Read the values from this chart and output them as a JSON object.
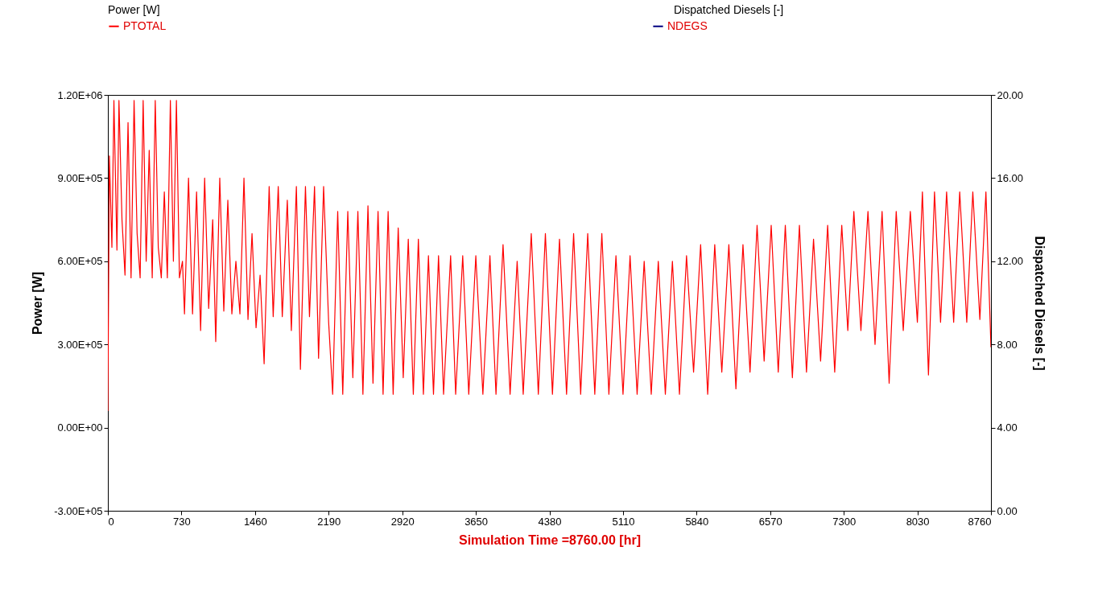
{
  "chart_data": {
    "type": "line",
    "xlabel": "Simulation Time =8760.00 [hr]",
    "ylabel": "Power  [W]",
    "y2label": "Dispatched  Diesels [-]",
    "annotations": [
      "Power [W]",
      "Dispatched Diesels [-]"
    ],
    "legend": "top",
    "xlim": [
      0,
      8760
    ],
    "xticks": [
      0,
      730,
      1460,
      2190,
      2920,
      3650,
      4380,
      5110,
      5840,
      6570,
      7300,
      8030,
      8760
    ],
    "ylim": [
      -300000,
      1200000
    ],
    "yticks": [
      {
        "value": -300000,
        "label": "-3.00E+05"
      },
      {
        "value": 0,
        "label": "0.00E+00"
      },
      {
        "value": 300000,
        "label": "3.00E+05"
      },
      {
        "value": 600000,
        "label": "6.00E+05"
      },
      {
        "value": 900000,
        "label": "9.00E+05"
      },
      {
        "value": 1200000,
        "label": "1.20E+06"
      }
    ],
    "y2lim": [
      0,
      20
    ],
    "y2ticks": [
      {
        "value": 0,
        "label": "0.00"
      },
      {
        "value": 4,
        "label": "4.00"
      },
      {
        "value": 8,
        "label": "8.00"
      },
      {
        "value": 12,
        "label": "12.00"
      },
      {
        "value": 16,
        "label": "16.00"
      },
      {
        "value": 20,
        "label": "20.00"
      }
    ],
    "x": [
      0,
      15,
      40,
      60,
      90,
      110,
      140,
      170,
      200,
      230,
      260,
      290,
      320,
      350,
      380,
      410,
      440,
      470,
      500,
      530,
      560,
      590,
      620,
      650,
      680,
      710,
      740,
      760,
      800,
      840,
      880,
      920,
      960,
      1000,
      1040,
      1070,
      1110,
      1150,
      1190,
      1230,
      1270,
      1310,
      1350,
      1390,
      1430,
      1470,
      1510,
      1550,
      1600,
      1640,
      1690,
      1730,
      1780,
      1820,
      1870,
      1910,
      1960,
      2000,
      2050,
      2090,
      2140,
      2190,
      2230,
      2280,
      2330,
      2380,
      2430,
      2480,
      2530,
      2580,
      2630,
      2680,
      2730,
      2780,
      2830,
      2880,
      2930,
      2980,
      3030,
      3080,
      3130,
      3180,
      3230,
      3280,
      3330,
      3400,
      3450,
      3520,
      3580,
      3650,
      3720,
      3790,
      3850,
      3920,
      3990,
      4060,
      4120,
      4200,
      4270,
      4340,
      4410,
      4480,
      4550,
      4620,
      4690,
      4760,
      4830,
      4900,
      4970,
      5040,
      5110,
      5180,
      5250,
      5320,
      5390,
      5460,
      5530,
      5600,
      5670,
      5740,
      5810,
      5880,
      5950,
      6020,
      6090,
      6160,
      6230,
      6300,
      6370,
      6440,
      6510,
      6580,
      6650,
      6720,
      6790,
      6860,
      6930,
      7000,
      7070,
      7140,
      7210,
      7280,
      7340,
      7400,
      7470,
      7540,
      7610,
      7680,
      7750,
      7820,
      7890,
      7960,
      8030,
      8080,
      8140,
      8200,
      8260,
      8320,
      8390,
      8450,
      8520,
      8580,
      8650,
      8710,
      8760
    ],
    "series": [
      {
        "name": "PTOTAL",
        "color": "#ff0000",
        "values": [
          60000,
          980000,
          650000,
          1180000,
          640000,
          1180000,
          750000,
          550000,
          1100000,
          540000,
          1180000,
          700000,
          540000,
          1180000,
          600000,
          1000000,
          540000,
          1180000,
          650000,
          540000,
          850000,
          540000,
          1180000,
          600000,
          1180000,
          540000,
          600000,
          410000,
          900000,
          410000,
          850000,
          350000,
          900000,
          430000,
          750000,
          310000,
          900000,
          420000,
          820000,
          410000,
          600000,
          410000,
          900000,
          390000,
          700000,
          360000,
          550000,
          230000,
          870000,
          400000,
          870000,
          400000,
          820000,
          350000,
          870000,
          210000,
          870000,
          400000,
          870000,
          250000,
          870000,
          380000,
          120000,
          780000,
          120000,
          780000,
          180000,
          780000,
          120000,
          800000,
          160000,
          780000,
          120000,
          780000,
          120000,
          720000,
          180000,
          680000,
          120000,
          680000,
          120000,
          620000,
          120000,
          620000,
          120000,
          620000,
          120000,
          620000,
          120000,
          620000,
          120000,
          620000,
          120000,
          660000,
          120000,
          600000,
          120000,
          700000,
          120000,
          700000,
          120000,
          680000,
          120000,
          700000,
          120000,
          700000,
          120000,
          700000,
          120000,
          620000,
          120000,
          620000,
          120000,
          600000,
          120000,
          600000,
          120000,
          600000,
          120000,
          620000,
          200000,
          660000,
          120000,
          660000,
          200000,
          660000,
          140000,
          660000,
          200000,
          730000,
          240000,
          730000,
          200000,
          730000,
          180000,
          730000,
          200000,
          680000,
          240000,
          730000,
          200000,
          730000,
          350000,
          780000,
          350000,
          780000,
          300000,
          780000,
          160000,
          780000,
          350000,
          780000,
          380000,
          850000,
          190000,
          850000,
          380000,
          850000,
          380000,
          850000,
          380000,
          850000,
          390000,
          850000,
          290000
        ]
      },
      {
        "name": "NDEGS",
        "color": "#000080",
        "axis": "y2",
        "values": [
          null,
          null,
          null,
          null,
          null,
          null,
          null,
          null,
          null,
          null,
          null,
          null,
          null,
          null,
          null,
          null,
          null,
          null,
          null,
          null,
          null,
          null,
          null,
          null,
          null,
          null,
          null,
          null,
          null,
          null,
          null,
          null,
          null,
          null,
          null,
          null,
          null,
          null,
          null,
          null,
          null,
          null,
          null,
          null,
          null,
          null,
          null,
          null,
          null,
          null,
          null,
          null,
          null,
          null,
          null,
          null,
          null,
          null,
          null,
          null,
          null,
          null,
          null,
          null,
          null,
          null,
          null,
          null,
          null,
          null,
          null,
          null,
          null,
          null,
          null,
          null,
          null,
          null,
          null,
          null,
          null,
          null,
          null,
          null,
          null,
          null,
          null,
          null,
          null,
          null,
          null,
          null,
          null,
          null,
          null,
          null,
          null,
          null,
          null,
          null,
          null,
          null,
          null,
          null,
          null,
          null,
          null,
          null,
          null,
          null,
          null,
          null,
          null,
          null,
          null,
          null,
          null,
          null,
          null,
          null,
          null,
          null,
          null,
          null,
          null,
          null,
          null,
          null,
          null,
          null,
          null,
          null,
          null,
          null,
          null,
          null,
          null,
          null,
          null,
          null,
          null,
          null,
          null,
          null,
          null,
          null,
          null,
          null,
          null,
          null,
          null,
          null,
          null,
          null,
          null,
          null,
          null,
          null,
          null,
          null,
          null,
          null,
          null,
          null,
          null
        ]
      }
    ]
  }
}
